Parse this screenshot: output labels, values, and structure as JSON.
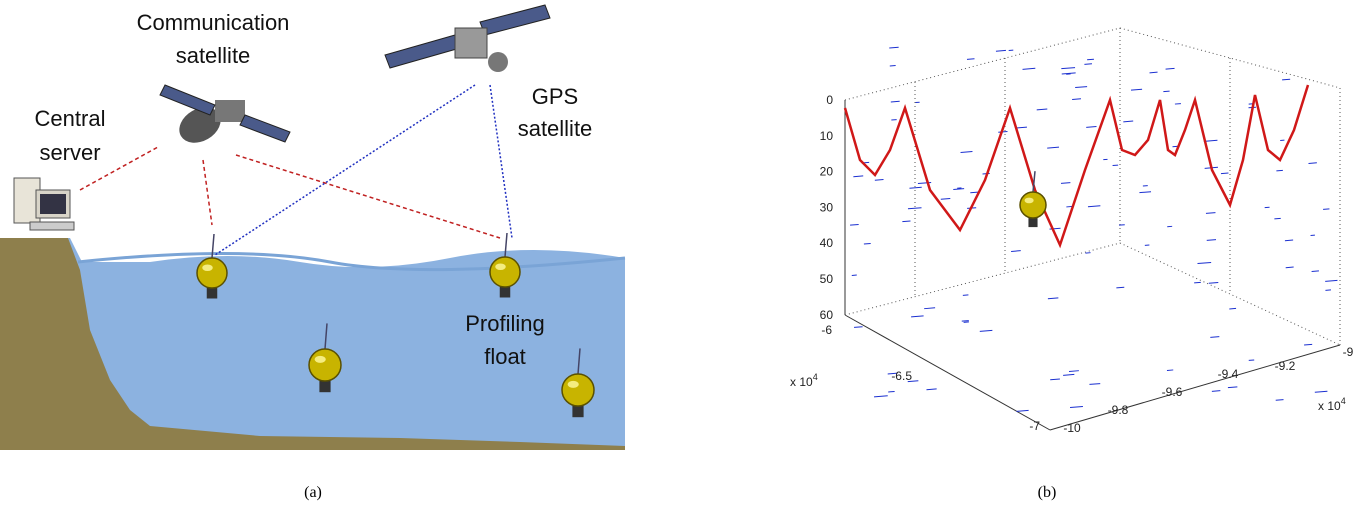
{
  "panel_a": {
    "labels": {
      "communication_satellite": [
        "Communication",
        "satellite"
      ],
      "gps_satellite": [
        "GPS",
        "satellite"
      ],
      "central_server": [
        "Central",
        "server"
      ],
      "profiling_float": [
        "Profiling",
        "float"
      ]
    },
    "caption": "(a)"
  },
  "panel_b": {
    "z_ticks": [
      0,
      10,
      20,
      30,
      40,
      50,
      60
    ],
    "x_ticks": [
      -6,
      -6.5,
      -7
    ],
    "y_ticks": [
      -10,
      -9.8,
      -9.6,
      -9.4,
      -9.2,
      -9
    ],
    "x_multiplier": {
      "base": "x 10",
      "exponent": 4
    },
    "y_multiplier": {
      "base": "x 10",
      "exponent": 4
    },
    "caption": "(b)"
  }
}
